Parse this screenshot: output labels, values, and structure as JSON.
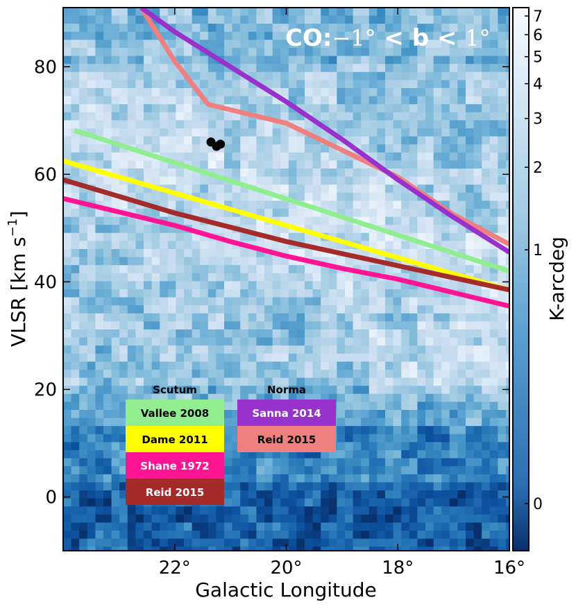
{
  "chart_data": {
    "type": "heatmap",
    "title_parts": {
      "prefix": "CO:",
      "range_low": "−1°",
      "middle": " < b < ",
      "range_high": "1°"
    },
    "xlabel": "Galactic Longitude",
    "ylabel_main": "VLSR [km s",
    "ylabel_sup": "−1",
    "ylabel_end": "]",
    "colorbar_label": "K-arcdeg",
    "xlim": [
      24.0,
      16.0
    ],
    "ylim": [
      -10,
      91
    ],
    "x_ticks": [
      {
        "value": 22,
        "label": "22°"
      },
      {
        "value": 20,
        "label": "20°"
      },
      {
        "value": 18,
        "label": "18°"
      },
      {
        "value": 16,
        "label": "16°"
      }
    ],
    "y_ticks": [
      {
        "value": 0,
        "label": "0"
      },
      {
        "value": 20,
        "label": "20"
      },
      {
        "value": 40,
        "label": "40"
      },
      {
        "value": 60,
        "label": "60"
      },
      {
        "value": 80,
        "label": "80"
      }
    ],
    "colorbar_ticks": [
      {
        "value": 0,
        "label": "0"
      },
      {
        "value": 1,
        "label": "1"
      },
      {
        "value": 2,
        "label": "2"
      },
      {
        "value": 3,
        "label": "3"
      },
      {
        "value": 4,
        "label": "4"
      },
      {
        "value": 5,
        "label": "5"
      },
      {
        "value": 6,
        "label": "6"
      },
      {
        "value": 7,
        "label": "7"
      }
    ],
    "colorbar_range": [
      -0.1,
      7.5
    ],
    "colormap": [
      "#08306b",
      "#0d52a0",
      "#2171b5",
      "#4292c6",
      "#6baed6",
      "#9ecae1",
      "#c6dbef",
      "#deebf7",
      "#f7fbff"
    ],
    "series": [
      {
        "name": "Vallee 2008",
        "arm": "Scutum",
        "color": "#90ee90",
        "text_color": "#000000",
        "x": [
          23.8,
          16.0
        ],
        "y": [
          68.2,
          42.0
        ]
      },
      {
        "name": "Dame 2011",
        "arm": "Scutum",
        "color": "#ffff00",
        "text_color": "#000000",
        "x": [
          24.0,
          16.0
        ],
        "y": [
          62.5,
          38.5
        ]
      },
      {
        "name": "Shane 1972",
        "arm": "Scutum",
        "color": "#ff1493",
        "text_color": "#ffffff",
        "x": [
          24.0,
          22.0,
          21.0,
          20.0,
          19.0,
          18.0,
          17.0,
          16.0
        ],
        "y": [
          55.5,
          50.5,
          47.5,
          44.8,
          42.5,
          40.5,
          38.0,
          35.5
        ]
      },
      {
        "name": "Reid 2015",
        "arm": "Scutum",
        "color": "#a52a2a",
        "text_color": "#ffffff",
        "x": [
          24.0,
          22.0,
          20.0,
          18.0,
          16.0
        ],
        "y": [
          59.0,
          52.8,
          47.5,
          43.0,
          38.5
        ]
      },
      {
        "name": "Sanna 2014",
        "arm": "Norma",
        "color": "#9932cc",
        "text_color": "#ffffff",
        "x": [
          22.6,
          22.0,
          21.0,
          20.0,
          19.0,
          18.0,
          17.0,
          16.0
        ],
        "y": [
          91.0,
          86.5,
          80.0,
          73.5,
          66.5,
          59.0,
          52.0,
          45.5
        ]
      },
      {
        "name": "Reid 2015",
        "arm": "Norma",
        "color": "#f08080",
        "text_color": "#000000",
        "x": [
          22.6,
          22.0,
          21.4,
          20.0,
          19.0,
          18.0,
          17.0,
          16.0
        ],
        "y": [
          91.0,
          81.0,
          73.0,
          69.5,
          64.5,
          59.5,
          52.5,
          47.0
        ]
      }
    ],
    "points": [
      {
        "x": 21.35,
        "y": 66.0
      },
      {
        "x": 21.25,
        "y": 65.2
      },
      {
        "x": 21.18,
        "y": 65.6
      }
    ],
    "legend_groups": [
      {
        "title": "Scutum",
        "items": [
          0,
          1,
          2,
          3
        ]
      },
      {
        "title": "Norma",
        "items": [
          4,
          5
        ]
      }
    ]
  }
}
